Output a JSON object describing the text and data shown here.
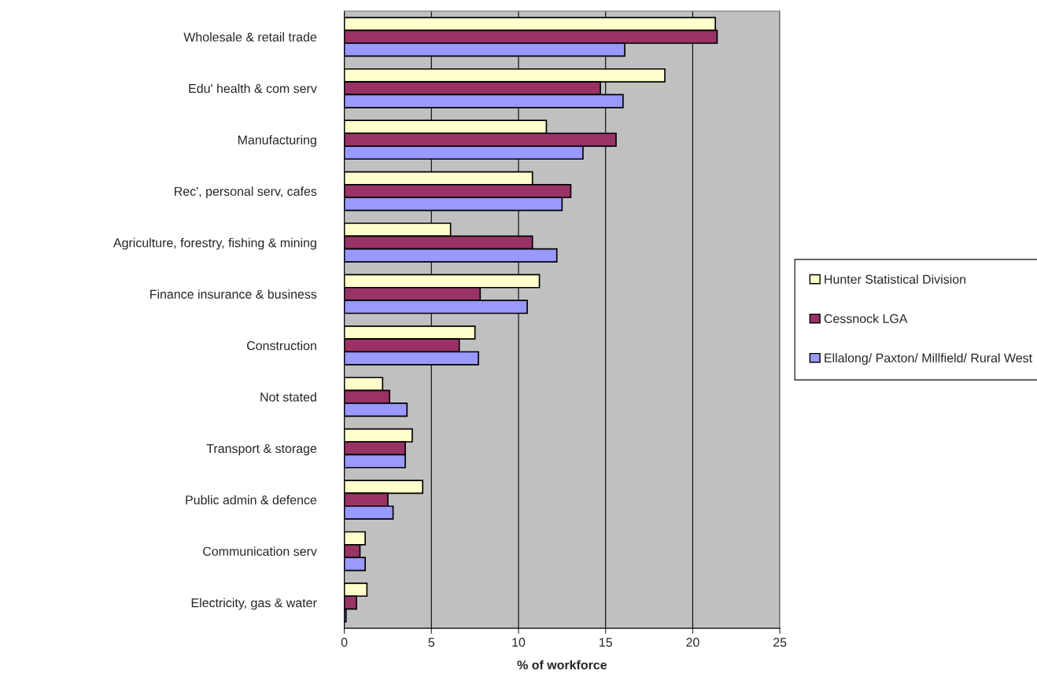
{
  "chart_data": {
    "type": "bar",
    "orientation": "horizontal",
    "xlabel": "% of workforce",
    "categories": [
      "Wholesale & retail trade",
      "Edu' health & com serv",
      "Manufacturing",
      "Rec', personal serv, cafes",
      "Agriculture, forestry, fishing & mining",
      "Finance insurance & business",
      "Construction",
      "Not stated",
      "Transport & storage",
      "Public admin & defence",
      "Communication serv",
      "Electricity, gas & water"
    ],
    "series": [
      {
        "name": "Hunter Statistical Division",
        "color": "#ffffcc",
        "values": [
          21.3,
          18.4,
          11.6,
          10.8,
          6.1,
          11.2,
          7.5,
          2.2,
          3.9,
          4.5,
          1.2,
          1.3
        ]
      },
      {
        "name": "Cessnock LGA",
        "color": "#993366",
        "values": [
          21.4,
          14.7,
          15.6,
          13.0,
          10.8,
          7.8,
          6.6,
          2.6,
          3.5,
          2.5,
          0.9,
          0.7
        ]
      },
      {
        "name": "Ellalong/ Paxton/ Millfield/ Rural West",
        "color": "#9999ff",
        "values": [
          16.1,
          16.0,
          13.7,
          12.5,
          12.2,
          10.5,
          7.7,
          3.6,
          3.5,
          2.8,
          1.2,
          0.1
        ]
      }
    ],
    "xlim": [
      0,
      25
    ],
    "xticks": [
      0,
      5,
      10,
      15,
      20,
      25
    ],
    "grid": "x",
    "legend": "right"
  }
}
